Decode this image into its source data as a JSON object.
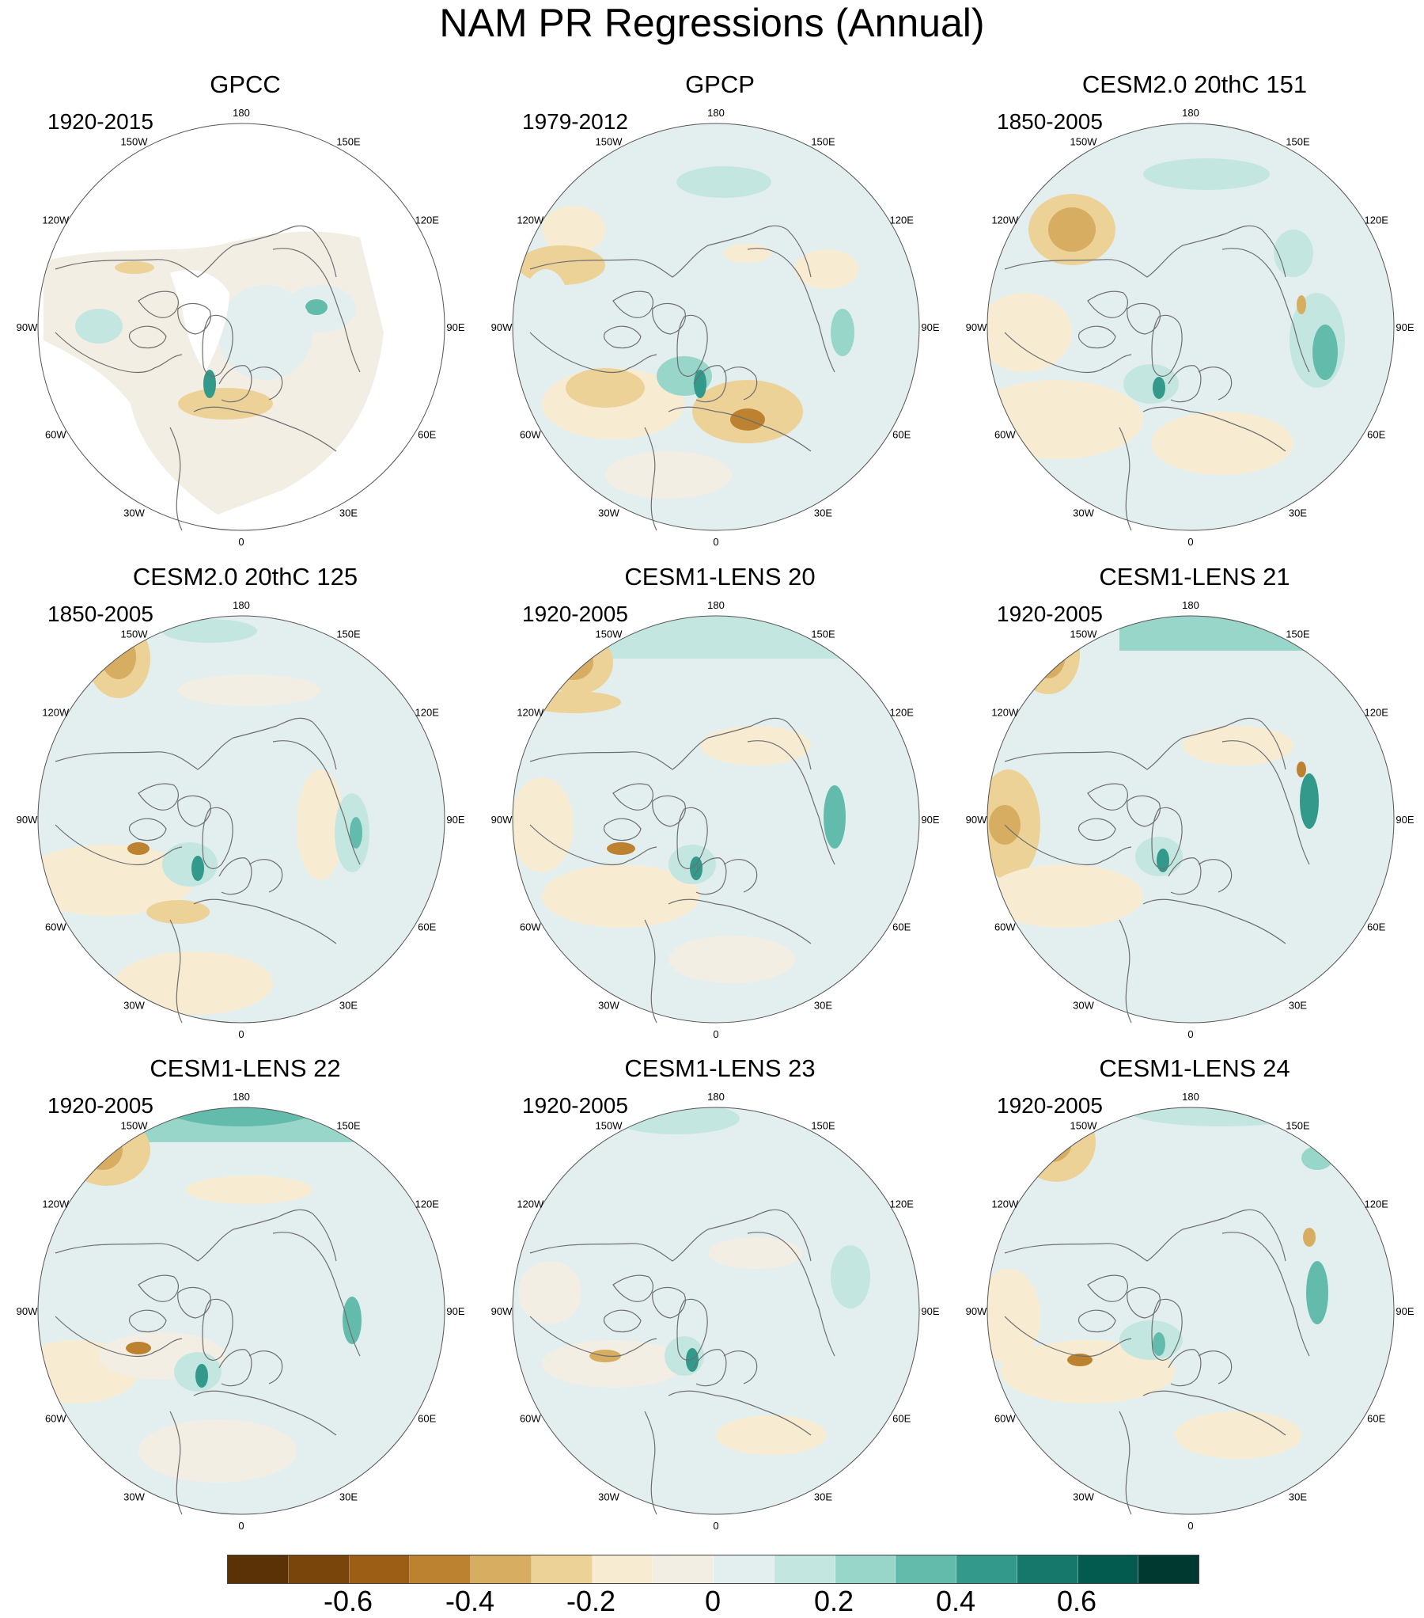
{
  "figure": {
    "title": "NAM PR Regressions (Annual)"
  },
  "longitude_labels": [
    "180",
    "150E",
    "120E",
    "90E",
    "60E",
    "30E",
    "0",
    "30W",
    "60W",
    "90W",
    "120W",
    "150W"
  ],
  "panels": [
    {
      "title": "GPCC",
      "years": "1920-2015"
    },
    {
      "title": "GPCP",
      "years": "1979-2012"
    },
    {
      "title": "CESM2.0 20thC 151",
      "years": "1850-2005"
    },
    {
      "title": "CESM2.0 20thC 125",
      "years": "1850-2005"
    },
    {
      "title": "CESM1-LENS 20",
      "years": "1920-2005"
    },
    {
      "title": "CESM1-LENS 21",
      "years": "1920-2005"
    },
    {
      "title": "CESM1-LENS 22",
      "years": "1920-2005"
    },
    {
      "title": "CESM1-LENS 23",
      "years": "1920-2005"
    },
    {
      "title": "CESM1-LENS 24",
      "years": "1920-2005"
    }
  ],
  "colorbar": {
    "colors": [
      "#5a3205",
      "#7a450b",
      "#9c5d14",
      "#bd8230",
      "#d7ad62",
      "#ecd296",
      "#f7ecd2",
      "#f3eee4",
      "#e3efee",
      "#c3e7e0",
      "#97d6c9",
      "#63bcab",
      "#33998a",
      "#16786a",
      "#035b4f",
      "#00392f"
    ],
    "tick_labels": [
      "-0.6",
      "-0.4",
      "-0.2",
      "0",
      "0.2",
      "0.4",
      "0.6"
    ]
  }
}
